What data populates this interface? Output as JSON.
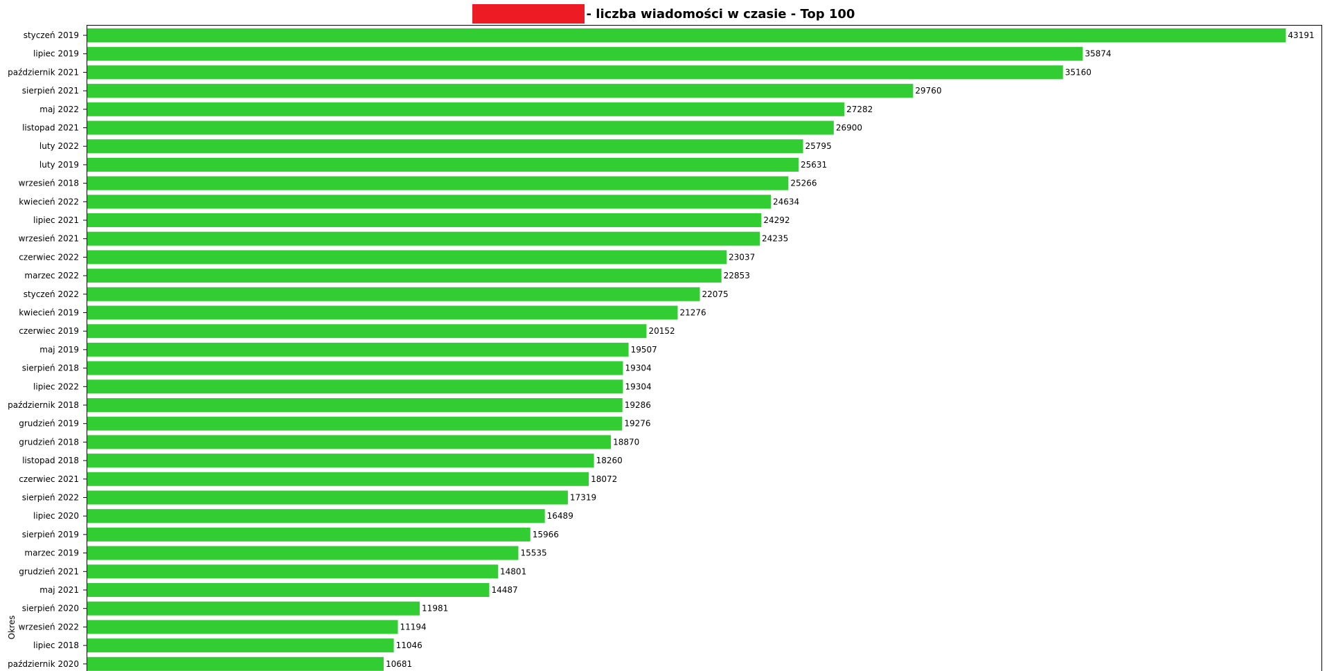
{
  "colors": {
    "bar": "#32cd32",
    "redaction": "#ed1c24",
    "axis": "#000000"
  },
  "title": {
    "redacted_icon": "redaction-block",
    "text": "- liczba wiadomości w czasie - Top 100"
  },
  "chart_data": {
    "type": "bar",
    "orientation": "horizontal",
    "title": "- liczba wiadomości w czasie - Top 100",
    "ylabel": "Okres",
    "xlabel": "",
    "xlim": [
      0,
      44500
    ],
    "grid": false,
    "categories": [
      "styczeń 2019",
      "lipiec 2019",
      "październik 2021",
      "sierpień 2021",
      "maj 2022",
      "listopad 2021",
      "luty 2022",
      "luty 2019",
      "wrzesień 2018",
      "kwiecień 2022",
      "lipiec 2021",
      "wrzesień 2021",
      "czerwiec 2022",
      "marzec 2022",
      "styczeń 2022",
      "kwiecień 2019",
      "czerwiec 2019",
      "maj 2019",
      "sierpień 2018",
      "lipiec 2022",
      "październik 2018",
      "grudzień 2019",
      "grudzień 2018",
      "listopad 2018",
      "czerwiec 2021",
      "sierpień 2022",
      "lipiec 2020",
      "sierpień 2019",
      "marzec 2019",
      "grudzień 2021",
      "maj 2021",
      "sierpień 2020",
      "wrzesień 2022",
      "lipiec 2018",
      "październik 2020"
    ],
    "values": [
      43191,
      35874,
      35160,
      29760,
      27282,
      26900,
      25795,
      25631,
      25266,
      24634,
      24292,
      24235,
      23037,
      22853,
      22075,
      21276,
      20152,
      19507,
      19304,
      19304,
      19286,
      19276,
      18870,
      18260,
      18072,
      17319,
      16489,
      15966,
      15535,
      14801,
      14487,
      11981,
      11194,
      11046,
      10681
    ],
    "value_labels": [
      "43191",
      "35874",
      "35160",
      "29760",
      "27282",
      "26900",
      "25795",
      "25631",
      "25266",
      "24634",
      "24292",
      "24235",
      "23037",
      "22853",
      "22075",
      "21276",
      "20152",
      "19507",
      "19304",
      "19304",
      "19286",
      "19276",
      "18870",
      "18260",
      "18072",
      "17319",
      "16489",
      "15966",
      "15535",
      "14801",
      "14487",
      "11981",
      "11194",
      "11046",
      "10681"
    ]
  }
}
